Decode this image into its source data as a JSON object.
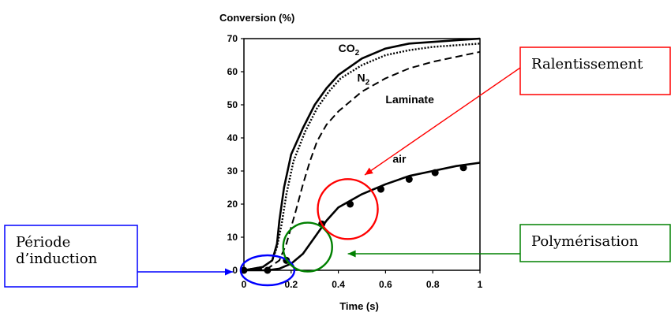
{
  "chart_data": {
    "type": "line",
    "title": "",
    "ylabel": "Conversion (%)",
    "xlabel": "Time (s)",
    "xlim": [
      0,
      1
    ],
    "ylim": [
      0,
      70
    ],
    "x_ticks": [
      "0",
      "0.2",
      "0.4",
      "0.6",
      "0.8",
      "1"
    ],
    "y_ticks": [
      "0",
      "10",
      "20",
      "30",
      "40",
      "50",
      "60",
      "70"
    ],
    "grid": false,
    "series": [
      {
        "name": "CO2",
        "label_main": "CO",
        "label_sub": "2",
        "style": "solid",
        "x": [
          0,
          0.08,
          0.12,
          0.14,
          0.15,
          0.17,
          0.2,
          0.25,
          0.3,
          0.35,
          0.4,
          0.5,
          0.6,
          0.7,
          0.8,
          0.9,
          1.0
        ],
        "y": [
          0,
          1,
          3,
          8,
          15,
          25,
          35,
          43,
          50,
          55,
          59,
          64,
          67,
          68.5,
          69,
          69.5,
          70
        ]
      },
      {
        "name": "N2",
        "label_main": "N",
        "label_sub": "2",
        "style": "dotted",
        "x": [
          0,
          0.08,
          0.12,
          0.14,
          0.16,
          0.18,
          0.21,
          0.26,
          0.31,
          0.36,
          0.41,
          0.5,
          0.6,
          0.7,
          0.8,
          0.9,
          1.0
        ],
        "y": [
          0,
          1,
          3,
          7,
          14,
          23,
          33,
          42,
          49,
          54,
          58,
          62,
          65,
          66.5,
          67.5,
          68,
          68.5
        ]
      },
      {
        "name": "Laminate",
        "label_main": "Laminate",
        "label_sub": "",
        "style": "dashed",
        "x": [
          0,
          0.1,
          0.15,
          0.18,
          0.2,
          0.22,
          0.25,
          0.28,
          0.31,
          0.35,
          0.4,
          0.5,
          0.6,
          0.7,
          0.8,
          0.9,
          1.0
        ],
        "y": [
          0,
          0.5,
          3,
          8,
          13,
          18,
          26,
          33,
          39,
          44,
          48,
          54,
          58,
          61,
          63,
          64.5,
          66
        ]
      },
      {
        "name": "air",
        "label_main": "air",
        "label_sub": "",
        "style": "solid",
        "x": [
          0,
          0.1,
          0.15,
          0.2,
          0.25,
          0.3,
          0.35,
          0.4,
          0.5,
          0.6,
          0.7,
          0.8,
          0.9,
          1.0
        ],
        "y": [
          0,
          0,
          0.5,
          2,
          5,
          10,
          15,
          19,
          23,
          26,
          28.5,
          30,
          31.5,
          32.5
        ]
      }
    ],
    "markers": {
      "series": "air",
      "x": [
        0,
        0.1,
        0.18,
        0.33,
        0.45,
        0.58,
        0.7,
        0.81,
        0.93
      ],
      "y": [
        0,
        0,
        3,
        14,
        20,
        24.5,
        27.5,
        29.5,
        31
      ]
    },
    "annotations": [
      {
        "id": "induction",
        "label_lines": [
          "Période",
          "d’induction"
        ],
        "color": "#0000ff",
        "circle_center": [
          0.1,
          0
        ],
        "arrow_target": [
          0,
          0
        ]
      },
      {
        "id": "polymerisation",
        "label_lines": [
          "Polymérisation"
        ],
        "color": "#008000",
        "circle_center": [
          0.27,
          7
        ],
        "arrow_target": [
          0.36,
          7
        ]
      },
      {
        "id": "ralentissement",
        "label_lines": [
          "Ralentissement"
        ],
        "color": "#ff0000",
        "circle_center": [
          0.44,
          18.5
        ],
        "arrow_target": [
          0.5,
          29
        ]
      }
    ]
  }
}
